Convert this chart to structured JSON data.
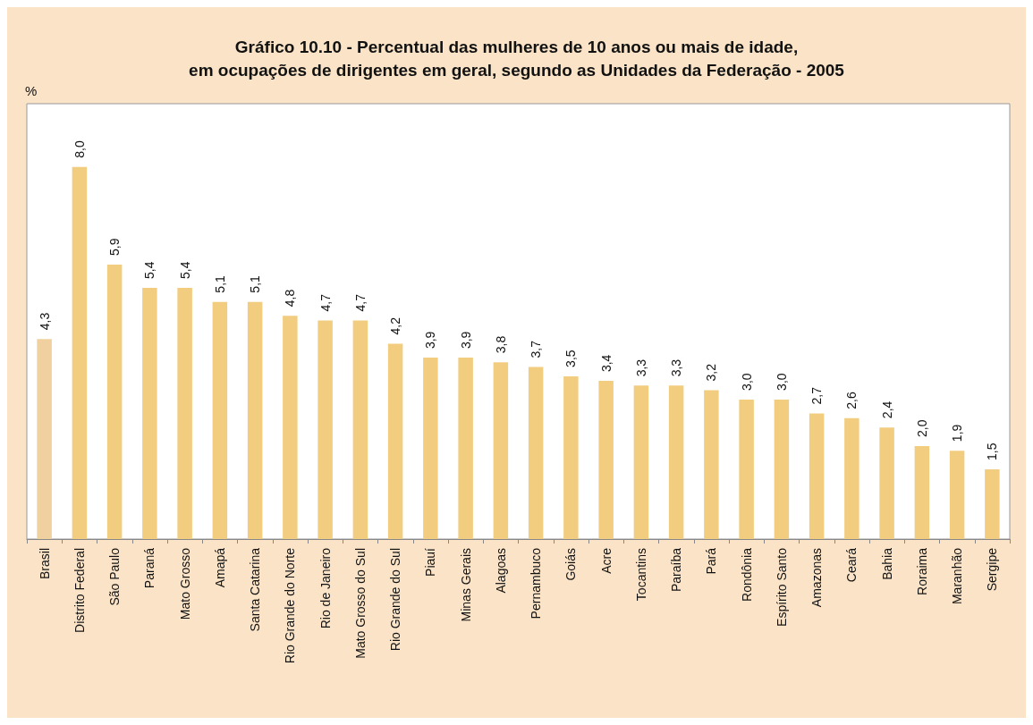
{
  "chart_data": {
    "type": "bar",
    "title": "Gráfico 10.10 - Percentual das mulheres de 10 anos ou mais de idade,\nem ocupações de dirigentes em geral, segundo as Unidades da Federação - 2005",
    "annotations": [
      "%"
    ],
    "categories": [
      "Brasil",
      "Distrito Federal",
      "São Paulo",
      "Paraná",
      "Mato Grosso",
      "Amapá",
      "Santa Catarina",
      "Rio Grande do Norte",
      "Rio de Janeiro",
      "Mato Grosso do Sul",
      "Rio Grande do Sul",
      "Piauí",
      "Minas Gerais",
      "Alagoas",
      "Pernambuco",
      "Goiás",
      "Acre",
      "Tocantins",
      "Paraíba",
      "Pará",
      "Rondônia",
      "Espírito Santo",
      "Amazonas",
      "Ceará",
      "Bahia",
      "Roraima",
      "Maranhão",
      "Sergipe"
    ],
    "values": [
      4.3,
      8.0,
      5.9,
      5.4,
      5.4,
      5.1,
      5.1,
      4.8,
      4.7,
      4.7,
      4.2,
      3.9,
      3.9,
      3.8,
      3.7,
      3.5,
      3.4,
      3.3,
      3.3,
      3.2,
      3.0,
      3.0,
      2.7,
      2.6,
      2.4,
      2.0,
      1.9,
      1.5
    ],
    "value_labels": [
      "4,3",
      "8,0",
      "5,9",
      "5,4",
      "5,4",
      "5,1",
      "5,1",
      "4,8",
      "4,7",
      "4,7",
      "4,2",
      "3,9",
      "3,9",
      "3,8",
      "3,7",
      "3,5",
      "3,4",
      "3,3",
      "3,3",
      "3,2",
      "3,0",
      "3,0",
      "2,7",
      "2,6",
      "2,4",
      "2,0",
      "1,9",
      "1,5"
    ],
    "colors": [
      "#f0d09e",
      "#f2cd80",
      "#f2cd80",
      "#f2cd80",
      "#f2cd80",
      "#f2cd80",
      "#f2cd80",
      "#f2cd80",
      "#f2cd80",
      "#f2cd80",
      "#f2cd80",
      "#f2cd80",
      "#f2cd80",
      "#f2cd80",
      "#f2cd80",
      "#f2cd80",
      "#f2cd80",
      "#f2cd80",
      "#f2cd80",
      "#f2cd80",
      "#f2cd80",
      "#f2cd80",
      "#f2cd80",
      "#f2cd80",
      "#f2cd80",
      "#f2cd80",
      "#f2cd80",
      "#f2cd80"
    ],
    "grid": false
  }
}
